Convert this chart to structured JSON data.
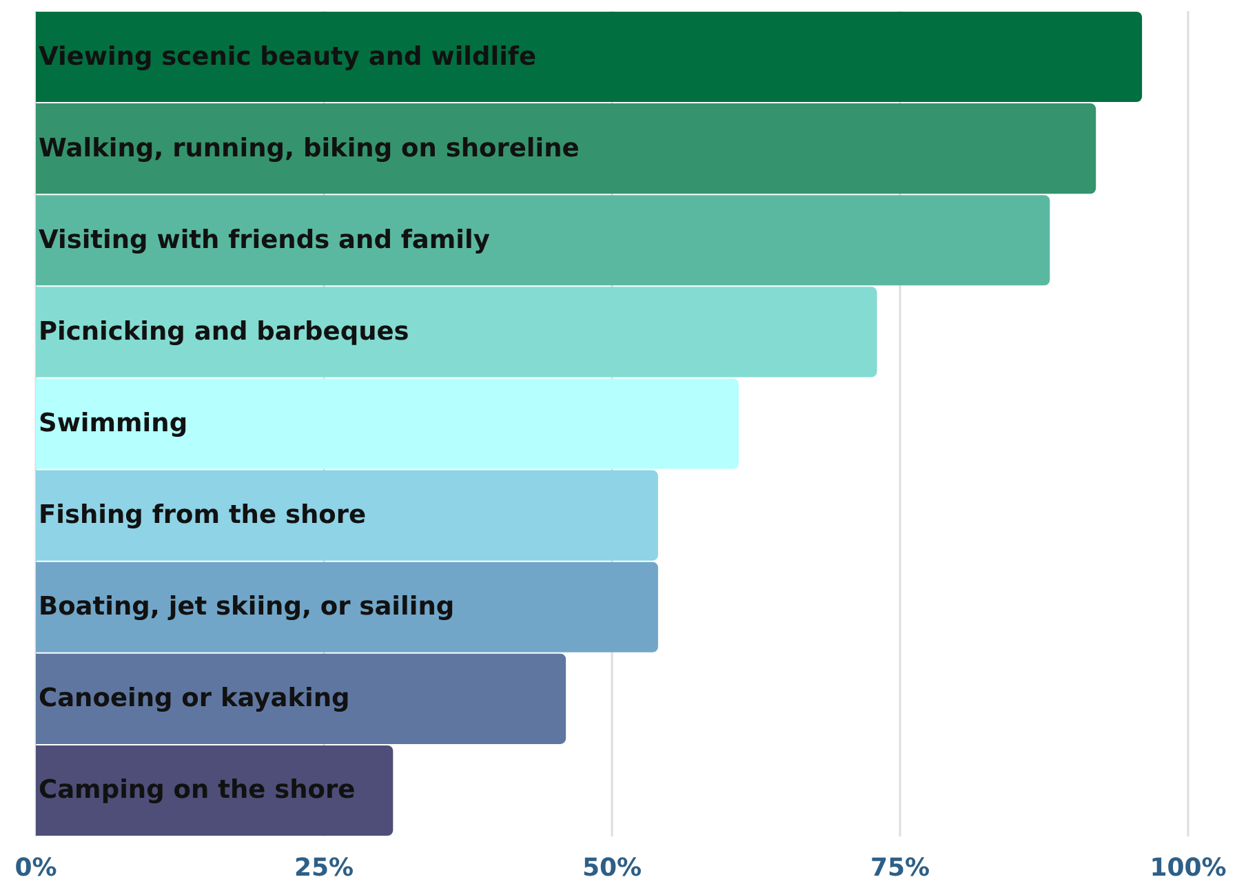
{
  "chart_data": {
    "type": "bar",
    "orientation": "horizontal",
    "categories": [
      "Viewing scenic beauty and wildlife",
      "Walking, running, biking on shoreline",
      "Visiting with friends and family",
      "Picnicking and barbeques",
      "Swimming",
      "Fishing from the shore",
      "Boating, jet skiing, or sailing",
      "Canoeing or kayaking",
      "Camping on the shore"
    ],
    "values": [
      96,
      92,
      88,
      73,
      61,
      54,
      54,
      46,
      31
    ],
    "colors": [
      "#026f40",
      "#35946e",
      "#5bb8a0",
      "#84dbd1",
      "#b5ffff",
      "#8fd3e6",
      "#71a6c8",
      "#5f77a0",
      "#4e4e78"
    ],
    "xlim": [
      0,
      100
    ],
    "xticks": [
      {
        "value": 0,
        "label": "0%"
      },
      {
        "value": 25,
        "label": "25%"
      },
      {
        "value": 50,
        "label": "50%"
      },
      {
        "value": 75,
        "label": "75%"
      },
      {
        "value": 100,
        "label": "100%"
      }
    ],
    "grid": "x"
  }
}
